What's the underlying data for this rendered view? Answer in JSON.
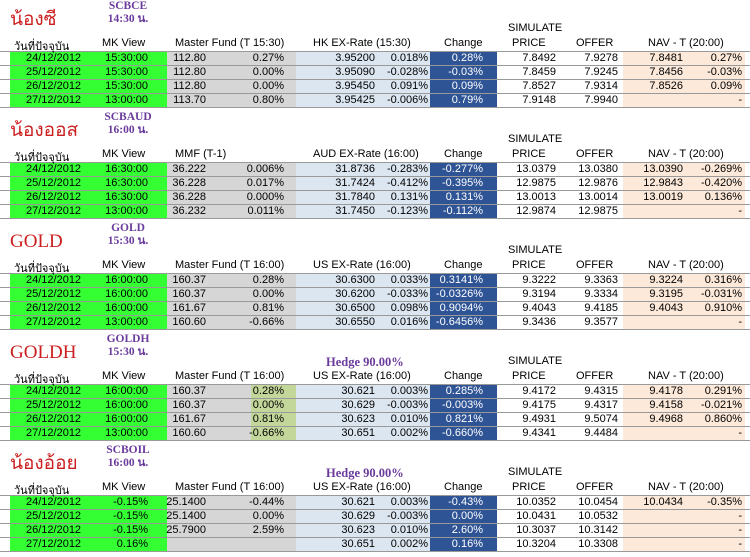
{
  "sections": [
    {
      "name": "น้องซี",
      "code1": "SCBCE",
      "code2": "14:30 น.",
      "hedge": "",
      "simulate": "SIMULATE",
      "headers": [
        "วันที่ปัจจุบัน",
        "MK View",
        "Master Fund (T 15:30)",
        "HK EX-Rate (15:30)",
        "Change",
        "PRICE",
        "OFFER",
        "NAV - T (20:00)"
      ],
      "rows": [
        [
          "24/12/2012",
          "15:30:00",
          "112.80",
          "0.27%",
          "3.95200",
          "0.018%",
          "0.28%",
          "7.8492",
          "7.9278",
          "7.8481",
          "0.27%"
        ],
        [
          "25/12/2012",
          "15:30:00",
          "112.80",
          "0.00%",
          "3.95090",
          "-0.028%",
          "-0.03%",
          "7.8459",
          "7.9245",
          "7.8456",
          "-0.03%"
        ],
        [
          "26/12/2012",
          "15:30:00",
          "112.80",
          "0.00%",
          "3.95450",
          "0.091%",
          "0.09%",
          "7.8527",
          "7.9314",
          "7.8526",
          "0.09%"
        ],
        [
          "27/12/2012",
          "13:00:00",
          "113.70",
          "0.80%",
          "3.95425",
          "-0.006%",
          "0.79%",
          "7.9148",
          "7.9940",
          "",
          "-"
        ]
      ]
    },
    {
      "name": "น้องออส",
      "code1": "SCBAUD",
      "code2": "16:00 น.",
      "hedge": "",
      "simulate": "SIMULATE",
      "headers": [
        "วันที่ปัจจุบัน",
        "MK View",
        "MMF (T-1)",
        "AUD EX-Rate (16:00)",
        "Change",
        "PRICE",
        "OFFER",
        "NAV - T (20:00)"
      ],
      "rows": [
        [
          "24/12/2012",
          "16:30:00",
          "36.222",
          "0.006%",
          "31.8736",
          "-0.283%",
          "-0.277%",
          "13.0379",
          "13.0380",
          "13.0390",
          "-0.269%"
        ],
        [
          "25/12/2012",
          "16:30:00",
          "36.228",
          "0.017%",
          "31.7424",
          "-0.412%",
          "-0.395%",
          "12.9875",
          "12.9876",
          "12.9843",
          "-0.420%"
        ],
        [
          "26/12/2012",
          "16:30:00",
          "36.228",
          "0.000%",
          "31.7840",
          "0.131%",
          "0.131%",
          "13.0013",
          "13.0014",
          "13.0019",
          "0.136%"
        ],
        [
          "27/12/2012",
          "13:00:00",
          "36.232",
          "0.011%",
          "31.7450",
          "-0.123%",
          "-0.112%",
          "12.9874",
          "12.9875",
          "",
          "-"
        ]
      ]
    },
    {
      "name": "GOLD",
      "code1": "GOLD",
      "code2": "15:30 น.",
      "hedge": "",
      "simulate": "SIMULATE",
      "headers": [
        "วันที่ปัจจุบัน",
        "MK View",
        "Master Fund (T 16:00)",
        "US EX-Rate (16:00)",
        "Change",
        "PRICE",
        "OFFER",
        "NAV - T (20:00)"
      ],
      "rows": [
        [
          "24/12/2012",
          "16:00:00",
          "160.37",
          "0.28%",
          "30.6300",
          "0.033%",
          "0.3141%",
          "9.3222",
          "9.3363",
          "9.3224",
          "0.316%"
        ],
        [
          "25/12/2012",
          "16:00:00",
          "160.37",
          "0.00%",
          "30.6200",
          "-0.033%",
          "-0.0326%",
          "9.3194",
          "9.3334",
          "9.3195",
          "-0.031%"
        ],
        [
          "26/12/2012",
          "16:00:00",
          "161.67",
          "0.81%",
          "30.6500",
          "0.098%",
          "0.9094%",
          "9.4043",
          "9.4185",
          "9.4043",
          "0.910%"
        ],
        [
          "27/12/2012",
          "13:00:00",
          "160.60",
          "-0.66%",
          "30.6550",
          "0.016%",
          "-0.6456%",
          "9.3436",
          "9.3577",
          "",
          "-"
        ]
      ]
    },
    {
      "name": "GOLDH",
      "code1": "GOLDH",
      "code2": "15:30 น.",
      "hedge": "Hedge 90.00%",
      "simulate": "SIMULATE",
      "headers": [
        "วันที่ปัจจุบัน",
        "MK View",
        "Master Fund (T 16:00)",
        "US EX-Rate (16:00)",
        "Change",
        "PRICE",
        "OFFER",
        "NAV - T (20:00)"
      ],
      "rows": [
        [
          "24/12/2012",
          "16:00:00",
          "160.37",
          "0.28%",
          "30.621",
          "0.003%",
          "0.285%",
          "9.4172",
          "9.4315",
          "9.4178",
          "0.291%"
        ],
        [
          "25/12/2012",
          "16:00:00",
          "160.37",
          "0.00%",
          "30.629",
          "-0.003%",
          "-0.003%",
          "9.4175",
          "9.4317",
          "9.4158",
          "-0.021%"
        ],
        [
          "26/12/2012",
          "16:00:00",
          "161.67",
          "0.81%",
          "30.623",
          "0.010%",
          "0.821%",
          "9.4931",
          "9.5074",
          "9.4968",
          "0.860%"
        ],
        [
          "27/12/2012",
          "13:00:00",
          "160.60",
          "-0.66%",
          "30.651",
          "0.002%",
          "-0.660%",
          "9.4341",
          "9.4484",
          "",
          "-"
        ]
      ]
    },
    {
      "name": "น้องอ้อย",
      "code1": "SCBOIL",
      "code2": "16:00 น.",
      "hedge": "Hedge 90.00%",
      "simulate": "SIMULATE",
      "headers": [
        "วันที่ปัจจุบัน",
        "MK View",
        "Master Fund (T 16:00)",
        "US EX-Rate (16:00)",
        "Change",
        "PRICE",
        "OFFER",
        "NAV - T (20:00)"
      ],
      "rows": [
        [
          "24/12/2012",
          "-0.15%",
          "25.1400",
          "-0.44%",
          "30.621",
          "0.003%",
          "-0.43%",
          "10.0352",
          "10.0454",
          "10.0434",
          "-0.35%"
        ],
        [
          "25/12/2012",
          "-0.15%",
          "25.1400",
          "0.00%",
          "30.629",
          "-0.003%",
          "0.00%",
          "10.0431",
          "10.0532",
          "",
          "-"
        ],
        [
          "26/12/2012",
          "-0.15%",
          "25.7900",
          "2.59%",
          "30.623",
          "0.010%",
          "2.60%",
          "10.3037",
          "10.3142",
          "",
          "-"
        ],
        [
          "27/12/2012",
          "0.16%",
          "",
          "",
          "30.651",
          "0.002%",
          "0.16%",
          "10.3204",
          "10.3308",
          "",
          "-"
        ]
      ]
    }
  ],
  "colors": {
    "green": "#33ff33",
    "gray": "#d6d6d6",
    "light_blue": "#dce6f1",
    "dark_blue": "#2f5496",
    "peach": "#fde9d9",
    "olive": "#c4d79b",
    "title_red": "#cc1f1f",
    "code_purple": "#6a3b9c"
  }
}
